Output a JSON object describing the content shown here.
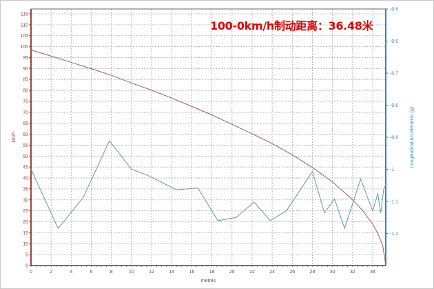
{
  "chart_data": {
    "type": "line",
    "title": "100-0km/h制动距离：36.48米",
    "xlabel": "metres",
    "ylabel": "km/h",
    "y2label": "Longitudinal Acceleration (g)",
    "xlim": [
      0,
      35.3
    ],
    "ylim": [
      0,
      117.2
    ],
    "y2lim": [
      -1.3,
      -0.5
    ],
    "xticks": [
      0,
      2,
      4,
      6,
      8,
      10,
      12,
      14,
      16,
      18,
      20,
      22,
      24,
      26,
      28,
      30,
      32,
      34
    ],
    "yticks": [
      0,
      5,
      10,
      15,
      20,
      25,
      30,
      35,
      40,
      45,
      50,
      55,
      60,
      65,
      70,
      75,
      80,
      85,
      90,
      95,
      100,
      105,
      110,
      115
    ],
    "y2ticks": [
      "-0.5",
      "-0.6",
      "-0.7",
      "-0.8",
      "-0.9",
      "-1",
      "-1.1",
      "-1.2"
    ],
    "grid": true,
    "series": [
      {
        "axis": "left",
        "color": "#a05a5a",
        "x": [
          0,
          2,
          4,
          6,
          8,
          10,
          12,
          14,
          16,
          18,
          20,
          22,
          24,
          26,
          28,
          30,
          32,
          33,
          34,
          34.5,
          35,
          35.3
        ],
        "y": [
          98.5,
          95.7,
          92.8,
          89.9,
          86.9,
          83.4,
          80.1,
          76.5,
          72.7,
          68.8,
          64.5,
          60.2,
          55.7,
          50.6,
          44.8,
          38.2,
          30.1,
          25.1,
          18.9,
          14.8,
          9.1,
          0
        ]
      },
      {
        "axis": "right",
        "color": "#5b9aa8",
        "x": [
          0,
          2.7,
          5.2,
          7.8,
          10,
          11.5,
          14.5,
          16.6,
          18.6,
          20.4,
          22.2,
          23.8,
          25.4,
          28,
          29.2,
          30.2,
          31.2,
          32.8,
          34,
          34.5,
          34.8,
          35.1,
          35.3
        ],
        "y": [
          -1.0,
          -1.184,
          -1.088,
          -0.911,
          -1.0,
          -1.017,
          -1.064,
          -1.058,
          -1.16,
          -1.15,
          -1.102,
          -1.16,
          -1.13,
          -1.007,
          -1.136,
          -1.092,
          -1.184,
          -1.03,
          -1.13,
          -1.075,
          -1.136,
          -1.061,
          -1.047
        ]
      }
    ],
    "colors": {
      "left_axis": "#a04040",
      "right_axis": "#2a8ac0",
      "title": "#e00000"
    }
  }
}
